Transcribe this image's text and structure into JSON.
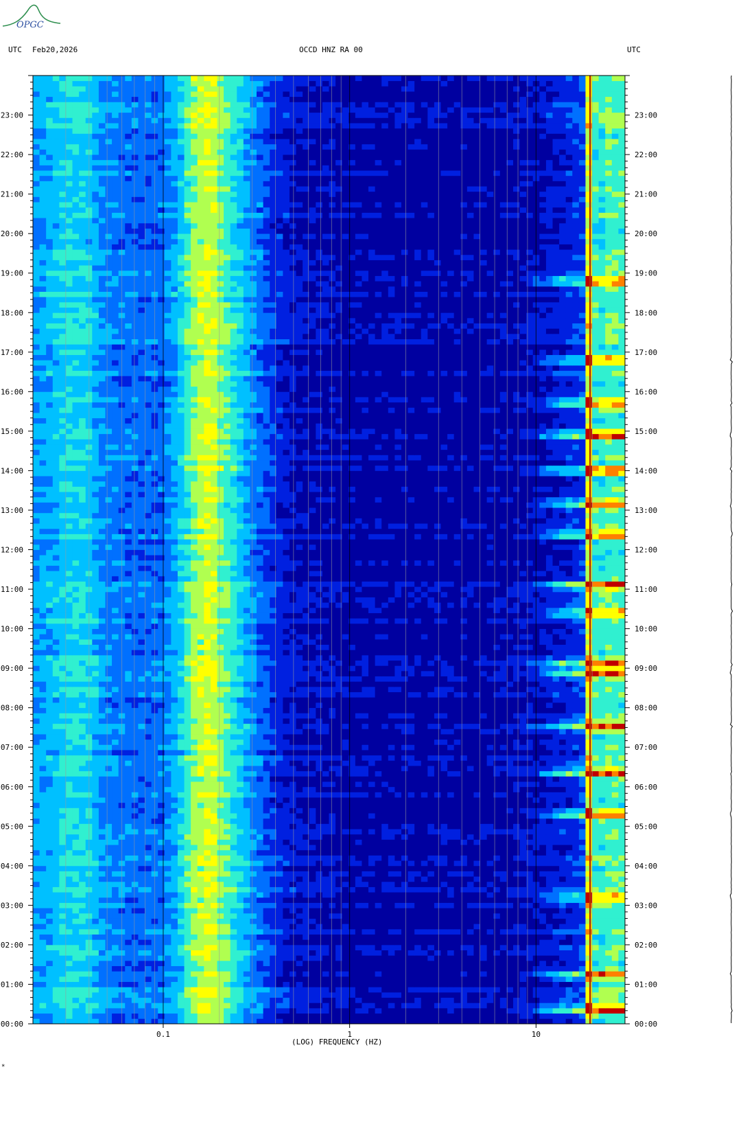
{
  "header": {
    "left_tz": "UTC",
    "date": "Feb20,2026",
    "station": "OCCD HNZ RA 00",
    "right_tz": "UTC"
  },
  "logo_text": "OPGC",
  "footer_mark": "*",
  "chart_data": {
    "type": "heatmap",
    "title": "OCCD HNZ RA 00",
    "xlabel": "(LOG) FREQUENCY (HZ)",
    "x_scale": "log",
    "xlim": [
      0.02,
      30
    ],
    "x_ticks": [
      {
        "value": 0.1,
        "label": "0.1"
      },
      {
        "value": 1,
        "label": "1"
      },
      {
        "value": 10,
        "label": "10"
      }
    ],
    "ylim": [
      0,
      24
    ],
    "y_ticks": [
      {
        "value": 0,
        "label": "00:00"
      },
      {
        "value": 1,
        "label": "01:00"
      },
      {
        "value": 2,
        "label": "02:00"
      },
      {
        "value": 3,
        "label": "03:00"
      },
      {
        "value": 4,
        "label": "04:00"
      },
      {
        "value": 5,
        "label": "05:00"
      },
      {
        "value": 6,
        "label": "06:00"
      },
      {
        "value": 7,
        "label": "07:00"
      },
      {
        "value": 8,
        "label": "08:00"
      },
      {
        "value": 9,
        "label": "09:00"
      },
      {
        "value": 10,
        "label": "10:00"
      },
      {
        "value": 11,
        "label": "11:00"
      },
      {
        "value": 12,
        "label": "12:00"
      },
      {
        "value": 13,
        "label": "13:00"
      },
      {
        "value": 14,
        "label": "14:00"
      },
      {
        "value": 15,
        "label": "15:00"
      },
      {
        "value": 16,
        "label": "16:00"
      },
      {
        "value": 17,
        "label": "17:00"
      },
      {
        "value": 18,
        "label": "18:00"
      },
      {
        "value": 19,
        "label": "19:00"
      },
      {
        "value": 20,
        "label": "20:00"
      },
      {
        "value": 21,
        "label": "21:00"
      },
      {
        "value": 22,
        "label": "22:00"
      },
      {
        "value": 23,
        "label": "23:00"
      }
    ],
    "colormap": [
      "#0000a0",
      "#0020e0",
      "#0070ff",
      "#00c0ff",
      "#30f0d0",
      "#b0ff50",
      "#ffff00",
      "#ff8000",
      "#c00000"
    ],
    "spectral_profile": [
      {
        "f": 0.02,
        "level": 0.32
      },
      {
        "f": 0.025,
        "level": 0.36
      },
      {
        "f": 0.03,
        "level": 0.44
      },
      {
        "f": 0.04,
        "level": 0.42
      },
      {
        "f": 0.047,
        "level": 0.3
      },
      {
        "f": 0.06,
        "level": 0.26
      },
      {
        "f": 0.08,
        "level": 0.23
      },
      {
        "f": 0.1,
        "level": 0.25
      },
      {
        "f": 0.12,
        "level": 0.38
      },
      {
        "f": 0.15,
        "level": 0.62
      },
      {
        "f": 0.18,
        "level": 0.7
      },
      {
        "f": 0.2,
        "level": 0.6
      },
      {
        "f": 0.25,
        "level": 0.44
      },
      {
        "f": 0.3,
        "level": 0.3
      },
      {
        "f": 0.4,
        "level": 0.14
      },
      {
        "f": 0.5,
        "level": 0.07
      },
      {
        "f": 1,
        "level": 0.02
      },
      {
        "f": 5,
        "level": 0.01
      },
      {
        "f": 10,
        "level": 0.05
      },
      {
        "f": 15,
        "level": 0.12
      },
      {
        "f": 18,
        "level": 0.18
      },
      {
        "f": 19.5,
        "level": 0.85
      },
      {
        "f": 21,
        "level": 0.45
      },
      {
        "f": 25,
        "level": 0.55
      },
      {
        "f": 30,
        "level": 0.5
      }
    ],
    "events_utc": [
      0.35,
      1.25,
      3.2,
      5.3,
      6.35,
      7.55,
      8.9,
      9.1,
      10.4,
      11.1,
      12.4,
      13.15,
      14.0,
      14.9,
      15.7,
      16.8,
      18.8
    ]
  }
}
